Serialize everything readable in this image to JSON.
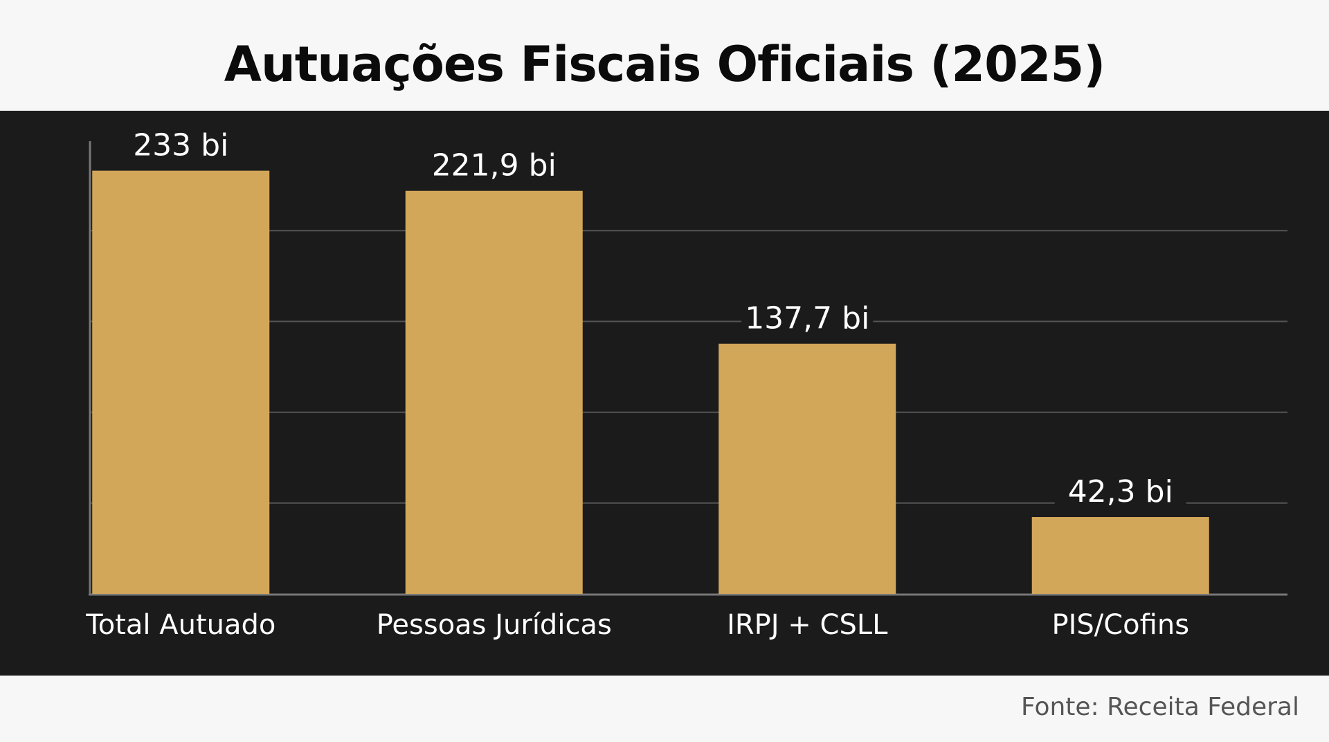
{
  "title": "Autuações Fiscais Oficiais (2025)",
  "source": "Fonte: Receita Federal",
  "colors": {
    "page_background": "#f7f7f7",
    "panel_background": "#1b1b1b",
    "bar": "#d3a75a",
    "grid": "#555555",
    "axis": "#777777",
    "label_text": "#ffffff"
  },
  "chart_data": {
    "type": "bar",
    "title": "Autuações Fiscais Oficiais (2025)",
    "xlabel": "",
    "ylabel": "",
    "categories": [
      "Total Autuado",
      "Pessoas Jurídicas",
      "IRPJ + CSLL",
      "PIS/Cofins"
    ],
    "values": [
      233,
      221.9,
      137.7,
      42.3
    ],
    "value_labels": [
      "233 bi",
      "221,9 bi",
      "137,7 bi",
      "42,3 bi"
    ],
    "ylim": [
      0,
      250
    ],
    "grid": true,
    "legend": "none"
  }
}
